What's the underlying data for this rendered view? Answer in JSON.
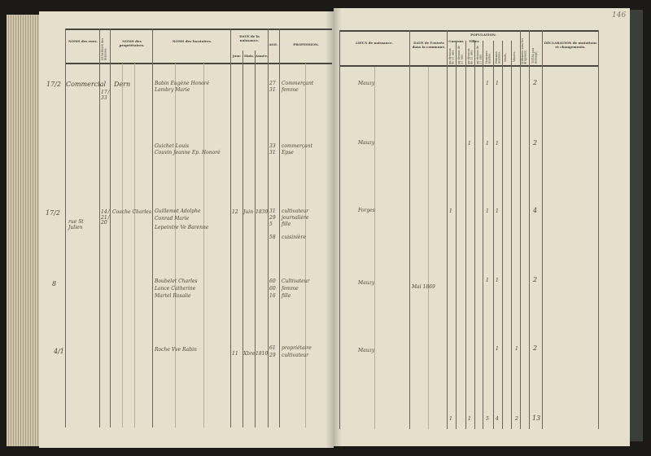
{
  "page_number": "146",
  "left_headers": {
    "streets": "NOMS des rues.",
    "house_numbers": "NUMÉROS des maisons.",
    "owners": "NOMS des propriétaires.",
    "tenants": "NOMS des locataires.",
    "birth_date": "DATE de la naissance.",
    "day": "Jour.",
    "month": "Mois.",
    "year": "Année.",
    "age": "AGE.",
    "profession": "PROFESSION."
  },
  "right_headers": {
    "birthplace": "LIEUX de naissance.",
    "entry_date": "DATE de l'entrée dans la commune.",
    "population": "POPULATION.",
    "boys": "Garçons",
    "girls": "Filles",
    "under21": "au-dessous de 21 ans.",
    "over21": "au-dessus de 21 ans.",
    "married_men": "Hommes mariés.",
    "married_women": "Femmes mariées.",
    "widowers": "Veufs.",
    "widows": "Veuves.",
    "military": "Militaires sous les drapeaux.",
    "total": "TOTAL par ménage.",
    "declaration": "DÉCLARATION de mutations et changements."
  },
  "entries": [
    {
      "margin": "17/2",
      "street": "Commercial",
      "numbers": "17 / 33",
      "owner": "Dern",
      "tenants": [
        "Babin Eugène Honoré",
        "Lambry Marie"
      ],
      "ages": [
        "27",
        "31"
      ],
      "professions": [
        "Commerçant",
        "femme"
      ],
      "birthplace": "Mauzy",
      "pop": [
        "1",
        "1"
      ],
      "total": "2"
    },
    {
      "tenants": [
        "Guichet Louis",
        "Couvin Jeanne Ep. Honoré"
      ],
      "ages": [
        "33",
        "31"
      ],
      "professions": [
        "commerçant",
        "Epse"
      ],
      "birthplace": "Mauzy",
      "pop": [
        "1",
        "1",
        "1"
      ],
      "total": "2"
    },
    {
      "margin": "17/2",
      "street": "rue St Julien",
      "numbers": "14 / 21 / 20",
      "owner": "Coache Charles",
      "tenants": [
        "Guillemot Adolphe",
        "Conrad Marie",
        "Lepeintre Ve Barenne"
      ],
      "day": "12",
      "month": "Juin",
      "year": "1839",
      "ages": [
        "31",
        "29",
        "5",
        "58"
      ],
      "professions": [
        "cultivateur",
        "journalière",
        "fille",
        "cuisinière"
      ],
      "birthplace": "Forges",
      "pop": [
        "1",
        "1",
        "1"
      ],
      "total": "4"
    },
    {
      "margin": "8",
      "tenants": [
        "Boubelet Charles",
        "Lance Catherine",
        "Martel Rosalie"
      ],
      "ages": [
        "60",
        "60",
        "16"
      ],
      "professions": [
        "Cultivateur",
        "femme",
        "fille"
      ],
      "birthplace": "Mauzy",
      "entry": "Mai 1869",
      "pop": [
        "1",
        "1"
      ],
      "total": "2"
    },
    {
      "margin": "4/1",
      "tenants": [
        "Roche Vve Rabin"
      ],
      "day": "11",
      "month": "Xbre",
      "year": "1810",
      "ages": [
        "61",
        "29"
      ],
      "professions": [
        "propriétaire",
        "cultivateur"
      ],
      "birthplace": "Mauzy",
      "pop": [
        "1",
        "1"
      ],
      "total": "2"
    }
  ],
  "column_totals": [
    "1",
    "1",
    "5",
    "4",
    "2",
    "13"
  ]
}
